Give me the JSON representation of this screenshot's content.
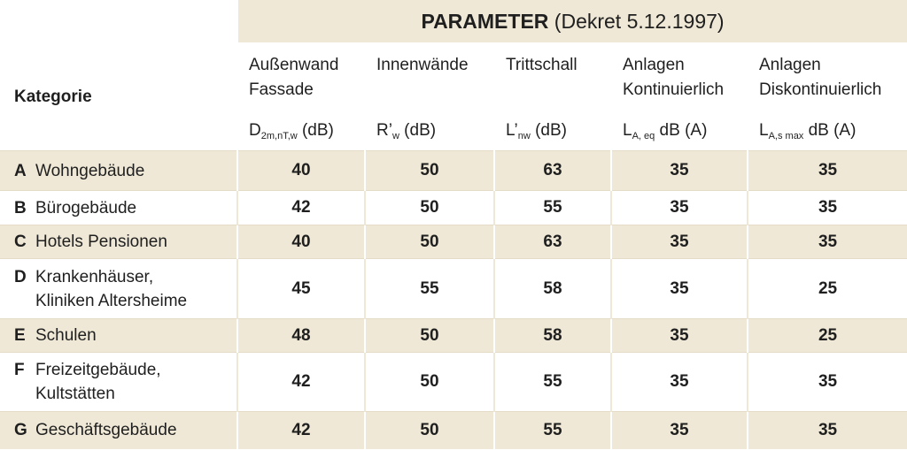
{
  "title": {
    "bold": "PARAMETER",
    "rest": " (Dekret 5.12.1997)"
  },
  "kategorie_label": "Kategorie",
  "columns": [
    {
      "name_l1": "Außenwand",
      "name_l2": "Fassade",
      "unit_main": "D",
      "unit_sub": "2m,nT,w",
      "unit_rest": " (dB)"
    },
    {
      "name_l1": "Innenwände",
      "name_l2": "",
      "unit_main": "R’",
      "unit_sub": "w",
      "unit_rest": " (dB)"
    },
    {
      "name_l1": "Trittschall",
      "name_l2": "",
      "unit_main": "L’",
      "unit_sub": "nw",
      "unit_rest": " (dB)"
    },
    {
      "name_l1": "Anlagen",
      "name_l2": "Kontinuierlich",
      "unit_main": "L",
      "unit_sub": "A, eq",
      "unit_rest": " dB (A)"
    },
    {
      "name_l1": "Anlagen",
      "name_l2": "Diskontinuierlich",
      "unit_main": "L",
      "unit_sub": "A,s max",
      "unit_rest": " dB (A)"
    }
  ],
  "rows": [
    {
      "letter": "A",
      "l1": "Wohngebäude",
      "l2": "",
      "v": [
        "40",
        "50",
        "63",
        "35",
        "35"
      ]
    },
    {
      "letter": "B",
      "l1": "Bürogebäude",
      "l2": "",
      "v": [
        "42",
        "50",
        "55",
        "35",
        "35"
      ]
    },
    {
      "letter": "C",
      "l1": "Hotels Pensionen",
      "l2": "",
      "v": [
        "40",
        "50",
        "63",
        "35",
        "35"
      ]
    },
    {
      "letter": "D",
      "l1": "Krankenhäuser,",
      "l2": "Kliniken Altersheime",
      "v": [
        "45",
        "55",
        "58",
        "35",
        "25"
      ]
    },
    {
      "letter": "E",
      "l1": "Schulen",
      "l2": "",
      "v": [
        "48",
        "50",
        "58",
        "35",
        "25"
      ]
    },
    {
      "letter": "F",
      "l1": "Freizeitgebäude,",
      "l2": "Kultstätten",
      "v": [
        "42",
        "50",
        "55",
        "35",
        "35"
      ]
    },
    {
      "letter": "G",
      "l1": "Geschäftsgebäude",
      "l2": "",
      "v": [
        "42",
        "50",
        "55",
        "35",
        "35"
      ]
    }
  ]
}
